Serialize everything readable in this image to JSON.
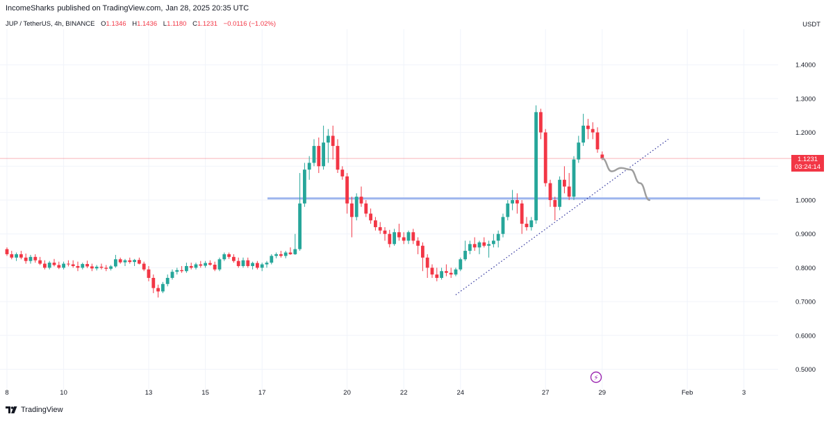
{
  "header": {
    "author": "IncomeSharks",
    "published_on": "published on TradingView.com,",
    "timestamp": "Jan 28, 2025 20:35 UTC"
  },
  "legend": {
    "symbol": "JUP / TetherUS, 4h, BINANCE",
    "o_label": "O",
    "o_value": "1.1346",
    "h_label": "H",
    "h_value": "1.1436",
    "l_label": "L",
    "l_value": "1.1180",
    "c_label": "C",
    "c_value": "1.1231",
    "change": "−0.0116 (−1.02%)"
  },
  "axis": {
    "currency": "USDT"
  },
  "price_label": {
    "price": "1.1231",
    "countdown": "03:24:14"
  },
  "footer": {
    "brand": "TradingView"
  },
  "colors": {
    "up": "#26a69a",
    "down": "#f23645",
    "level": "#9fb6ee",
    "trend": "#2a2e9a",
    "projection": "#9e9e9e",
    "price_line": "#f23645",
    "event": "#9c27b0"
  },
  "chart_data": {
    "type": "candlestick",
    "title": "JUP / TetherUS, 4h, BINANCE",
    "ylabel": "USDT",
    "ylim": [
      0.45,
      1.45
    ],
    "y_ticks": [
      "1.4000",
      "1.3000",
      "1.2000",
      "1.1000",
      "1.0000",
      "0.9000",
      "0.8000",
      "0.7000",
      "0.6000",
      "0.5000"
    ],
    "y_tick_values": [
      1.4,
      1.3,
      1.2,
      1.1,
      1.0,
      0.9,
      0.8,
      0.7,
      0.6,
      0.5
    ],
    "x_ticks": [
      "8",
      "10",
      "13",
      "15",
      "17",
      "20",
      "22",
      "24",
      "27",
      "29",
      "Feb",
      "3"
    ],
    "x_tick_index": [
      0,
      12,
      30,
      42,
      54,
      72,
      84,
      96,
      114,
      126,
      144,
      156
    ],
    "grid": true,
    "last_price": 1.1231,
    "candles": [
      [
        0.855,
        0.86,
        0.835,
        0.84
      ],
      [
        0.84,
        0.85,
        0.825,
        0.83
      ],
      [
        0.83,
        0.845,
        0.82,
        0.84
      ],
      [
        0.84,
        0.85,
        0.825,
        0.83
      ],
      [
        0.83,
        0.842,
        0.812,
        0.82
      ],
      [
        0.82,
        0.838,
        0.812,
        0.832
      ],
      [
        0.832,
        0.84,
        0.815,
        0.822
      ],
      [
        0.822,
        0.832,
        0.808,
        0.812
      ],
      [
        0.812,
        0.822,
        0.795,
        0.8
      ],
      [
        0.8,
        0.82,
        0.795,
        0.815
      ],
      [
        0.815,
        0.826,
        0.804,
        0.808
      ],
      [
        0.808,
        0.818,
        0.796,
        0.8
      ],
      [
        0.8,
        0.818,
        0.795,
        0.812
      ],
      [
        0.812,
        0.822,
        0.804,
        0.81
      ],
      [
        0.81,
        0.822,
        0.8,
        0.805
      ],
      [
        0.805,
        0.818,
        0.79,
        0.8
      ],
      [
        0.8,
        0.815,
        0.795,
        0.811
      ],
      [
        0.811,
        0.821,
        0.799,
        0.804
      ],
      [
        0.804,
        0.812,
        0.79,
        0.798
      ],
      [
        0.798,
        0.808,
        0.792,
        0.803
      ],
      [
        0.803,
        0.812,
        0.795,
        0.8
      ],
      [
        0.8,
        0.808,
        0.79,
        0.797
      ],
      [
        0.797,
        0.808,
        0.792,
        0.804
      ],
      [
        0.804,
        0.838,
        0.8,
        0.825
      ],
      [
        0.825,
        0.83,
        0.812,
        0.816
      ],
      [
        0.816,
        0.826,
        0.805,
        0.822
      ],
      [
        0.822,
        0.83,
        0.812,
        0.817
      ],
      [
        0.817,
        0.826,
        0.805,
        0.823
      ],
      [
        0.823,
        0.83,
        0.81,
        0.812
      ],
      [
        0.812,
        0.818,
        0.79,
        0.795
      ],
      [
        0.795,
        0.805,
        0.76,
        0.77
      ],
      [
        0.77,
        0.78,
        0.725,
        0.74
      ],
      [
        0.74,
        0.75,
        0.712,
        0.73
      ],
      [
        0.73,
        0.758,
        0.725,
        0.752
      ],
      [
        0.752,
        0.78,
        0.745,
        0.77
      ],
      [
        0.77,
        0.795,
        0.765,
        0.788
      ],
      [
        0.788,
        0.8,
        0.78,
        0.793
      ],
      [
        0.793,
        0.805,
        0.785,
        0.79
      ],
      [
        0.79,
        0.815,
        0.785,
        0.805
      ],
      [
        0.805,
        0.815,
        0.795,
        0.8
      ],
      [
        0.8,
        0.815,
        0.795,
        0.81
      ],
      [
        0.81,
        0.82,
        0.8,
        0.806
      ],
      [
        0.806,
        0.82,
        0.8,
        0.814
      ],
      [
        0.814,
        0.822,
        0.806,
        0.809
      ],
      [
        0.809,
        0.818,
        0.79,
        0.795
      ],
      [
        0.795,
        0.83,
        0.79,
        0.825
      ],
      [
        0.825,
        0.845,
        0.82,
        0.84
      ],
      [
        0.84,
        0.845,
        0.826,
        0.832
      ],
      [
        0.832,
        0.84,
        0.815,
        0.82
      ],
      [
        0.82,
        0.83,
        0.8,
        0.805
      ],
      [
        0.805,
        0.83,
        0.8,
        0.822
      ],
      [
        0.822,
        0.83,
        0.8,
        0.805
      ],
      [
        0.805,
        0.818,
        0.795,
        0.814
      ],
      [
        0.814,
        0.82,
        0.795,
        0.8
      ],
      [
        0.8,
        0.815,
        0.79,
        0.81
      ],
      [
        0.81,
        0.82,
        0.8,
        0.815
      ],
      [
        0.815,
        0.84,
        0.81,
        0.835
      ],
      [
        0.835,
        0.845,
        0.828,
        0.84
      ],
      [
        0.84,
        0.85,
        0.83,
        0.835
      ],
      [
        0.835,
        0.85,
        0.828,
        0.845
      ],
      [
        0.845,
        0.86,
        0.838,
        0.84
      ],
      [
        0.84,
        0.9,
        0.838,
        0.855
      ],
      [
        0.855,
        1.08,
        0.85,
        0.99
      ],
      [
        0.99,
        1.11,
        0.98,
        1.09
      ],
      [
        1.09,
        1.13,
        1.06,
        1.11
      ],
      [
        1.11,
        1.18,
        1.1,
        1.16
      ],
      [
        1.16,
        1.185,
        1.08,
        1.1
      ],
      [
        1.1,
        1.22,
        1.09,
        1.17
      ],
      [
        1.17,
        1.21,
        1.11,
        1.19
      ],
      [
        1.19,
        1.22,
        1.12,
        1.16
      ],
      [
        1.16,
        1.18,
        1.08,
        1.09
      ],
      [
        1.09,
        1.1,
        1.06,
        1.07
      ],
      [
        1.07,
        1.08,
        0.96,
        0.99
      ],
      [
        0.99,
        1.01,
        0.89,
        0.95
      ],
      [
        0.95,
        1.02,
        0.94,
        1.01
      ],
      [
        1.01,
        1.04,
        0.98,
        0.99
      ],
      [
        0.99,
        1.0,
        0.95,
        0.96
      ],
      [
        0.96,
        0.975,
        0.93,
        0.94
      ],
      [
        0.94,
        0.95,
        0.91,
        0.92
      ],
      [
        0.92,
        0.935,
        0.9,
        0.91
      ],
      [
        0.91,
        0.92,
        0.88,
        0.9
      ],
      [
        0.9,
        0.912,
        0.86,
        0.87
      ],
      [
        0.87,
        0.915,
        0.865,
        0.905
      ],
      [
        0.905,
        0.93,
        0.88,
        0.89
      ],
      [
        0.89,
        0.905,
        0.87,
        0.88
      ],
      [
        0.88,
        0.91,
        0.87,
        0.905
      ],
      [
        0.905,
        0.915,
        0.87,
        0.88
      ],
      [
        0.88,
        0.89,
        0.84,
        0.865
      ],
      [
        0.865,
        0.875,
        0.79,
        0.83
      ],
      [
        0.83,
        0.84,
        0.77,
        0.8
      ],
      [
        0.8,
        0.81,
        0.77,
        0.78
      ],
      [
        0.78,
        0.8,
        0.76,
        0.77
      ],
      [
        0.77,
        0.8,
        0.765,
        0.79
      ],
      [
        0.79,
        0.81,
        0.775,
        0.785
      ],
      [
        0.785,
        0.8,
        0.77,
        0.78
      ],
      [
        0.78,
        0.8,
        0.775,
        0.795
      ],
      [
        0.795,
        0.83,
        0.79,
        0.825
      ],
      [
        0.825,
        0.88,
        0.82,
        0.85
      ],
      [
        0.85,
        0.88,
        0.84,
        0.87
      ],
      [
        0.87,
        0.89,
        0.85,
        0.86
      ],
      [
        0.86,
        0.88,
        0.84,
        0.875
      ],
      [
        0.875,
        0.89,
        0.86,
        0.865
      ],
      [
        0.865,
        0.88,
        0.83,
        0.87
      ],
      [
        0.87,
        0.9,
        0.86,
        0.88
      ],
      [
        0.88,
        0.91,
        0.86,
        0.9
      ],
      [
        0.9,
        0.96,
        0.89,
        0.95
      ],
      [
        0.95,
        1.0,
        0.94,
        0.99
      ],
      [
        0.99,
        1.03,
        0.97,
        1.0
      ],
      [
        1.0,
        1.02,
        0.96,
        0.99
      ],
      [
        0.99,
        1.0,
        0.9,
        0.93
      ],
      [
        0.93,
        0.95,
        0.91,
        0.92
      ],
      [
        0.92,
        0.95,
        0.91,
        0.94
      ],
      [
        0.94,
        1.28,
        0.93,
        1.26
      ],
      [
        1.26,
        1.27,
        1.18,
        1.2
      ],
      [
        1.2,
        1.21,
        1.04,
        1.05
      ],
      [
        1.05,
        1.06,
        0.98,
        1.0
      ],
      [
        1.0,
        1.01,
        0.94,
        0.98
      ],
      [
        0.98,
        1.07,
        0.97,
        1.06
      ],
      [
        1.06,
        1.1,
        1.02,
        1.04
      ],
      [
        1.04,
        1.08,
        1.0,
        1.01
      ],
      [
        1.01,
        1.13,
        1.0,
        1.12
      ],
      [
        1.12,
        1.19,
        1.11,
        1.17
      ],
      [
        1.17,
        1.255,
        1.16,
        1.22
      ],
      [
        1.22,
        1.24,
        1.18,
        1.21
      ],
      [
        1.21,
        1.23,
        1.18,
        1.2
      ],
      [
        1.2,
        1.215,
        1.14,
        1.15
      ],
      [
        1.1346,
        1.1436,
        1.118,
        1.1231
      ]
    ],
    "horizontal_level": {
      "price": 1.005
    },
    "trendline": {
      "from": {
        "index": 95,
        "price": 0.72
      },
      "to": {
        "index": 140,
        "price": 1.18
      }
    },
    "projection": [
      {
        "index": 126,
        "price": 1.123
      },
      {
        "index": 128,
        "price": 1.085
      },
      {
        "index": 130,
        "price": 1.095
      },
      {
        "index": 132,
        "price": 1.09
      },
      {
        "index": 134,
        "price": 1.05
      },
      {
        "index": 136,
        "price": 1.0
      }
    ],
    "event_marker": {
      "symbol": "⚡",
      "index": 125
    }
  }
}
